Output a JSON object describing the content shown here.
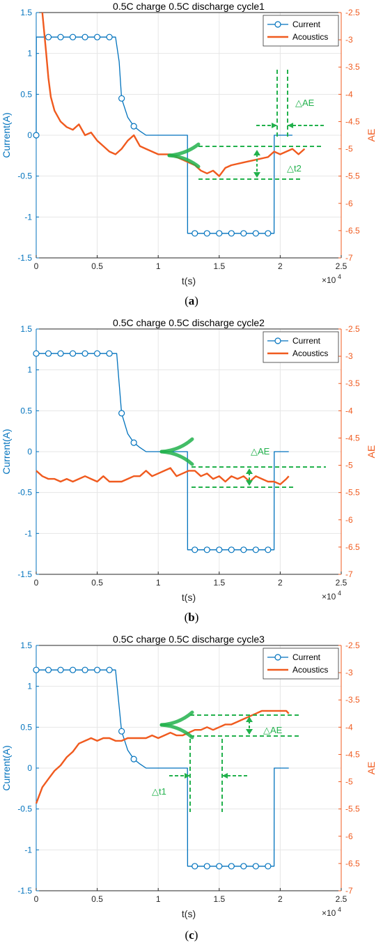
{
  "colors": {
    "current": "#0072BD",
    "acoustics": "#F05A1E",
    "annotation": "#22B14C",
    "grid": "#E6E6E6",
    "axis": "#262626"
  },
  "axes_common": {
    "xlabel": "t(s)",
    "ylabel_left": "Current(A)",
    "ylabel_right": "AE",
    "x_exponent_label": "×10",
    "x_exponent_power": "4",
    "xlim": [
      0,
      2.5
    ],
    "ylim_left": [
      -1.5,
      1.5
    ],
    "ylim_right": [
      -7,
      -2.5
    ],
    "xticks": [
      "0",
      "0.5",
      "1",
      "1.5",
      "2",
      "2.5"
    ],
    "yticks_left": [
      "-1.5",
      "-1",
      "-0.5",
      "0",
      "0.5",
      "1",
      "1.5"
    ],
    "yticks_right": [
      "-7",
      "-6.5",
      "-6",
      "-5.5",
      "-5",
      "-4.5",
      "-4",
      "-3.5",
      "-3",
      "-2.5"
    ],
    "legend": [
      "Current",
      "Acoustics"
    ],
    "legend_position": "top-right",
    "grid": true
  },
  "chart_data": [
    {
      "type": "line",
      "title": "0.5C charge 0.5C discharge cycle1",
      "caption_letter": "a",
      "series": [
        {
          "name": "Current",
          "axis": "left",
          "marker": "circle",
          "x": [
            0,
            0.001,
            0.1,
            0.2,
            0.3,
            0.4,
            0.5,
            0.6,
            0.65,
            0.68,
            0.7,
            0.75,
            0.8,
            0.85,
            0.9,
            1.0,
            1.1,
            1.24,
            1.241,
            1.3,
            1.4,
            1.5,
            1.6,
            1.7,
            1.8,
            1.95,
            1.951,
            2.1
          ],
          "y": [
            0,
            1.2,
            1.2,
            1.2,
            1.2,
            1.2,
            1.2,
            1.2,
            1.2,
            0.9,
            0.45,
            0.22,
            0.11,
            0.05,
            0.0,
            0.0,
            0.0,
            0.0,
            -1.2,
            -1.2,
            -1.2,
            -1.2,
            -1.2,
            -1.2,
            -1.2,
            -1.2,
            0.0,
            0.0
          ],
          "marker_x": [
            0,
            0.1,
            0.2,
            0.3,
            0.4,
            0.5,
            0.6,
            0.7,
            0.8,
            1.3,
            1.4,
            1.5,
            1.6,
            1.7,
            1.8,
            1.9
          ],
          "marker_y": [
            0,
            1.2,
            1.2,
            1.2,
            1.2,
            1.2,
            1.2,
            0.45,
            0.11,
            -1.2,
            -1.2,
            -1.2,
            -1.2,
            -1.2,
            -1.2,
            -1.2
          ]
        },
        {
          "name": "Acoustics",
          "axis": "right",
          "x": [
            0.05,
            0.08,
            0.1,
            0.12,
            0.15,
            0.2,
            0.25,
            0.3,
            0.35,
            0.4,
            0.45,
            0.5,
            0.55,
            0.6,
            0.65,
            0.7,
            0.75,
            0.8,
            0.85,
            0.9,
            1.0,
            1.1,
            1.2,
            1.3,
            1.35,
            1.4,
            1.45,
            1.5,
            1.55,
            1.6,
            1.7,
            1.8,
            1.9,
            1.95,
            2.0,
            2.1,
            2.15,
            2.2
          ],
          "y": [
            -2.5,
            -3.2,
            -3.7,
            -4.05,
            -4.3,
            -4.5,
            -4.6,
            -4.65,
            -4.55,
            -4.75,
            -4.7,
            -4.85,
            -4.95,
            -5.05,
            -5.1,
            -5.0,
            -4.85,
            -4.75,
            -4.95,
            -5.0,
            -5.1,
            -5.1,
            -5.2,
            -5.3,
            -5.4,
            -5.45,
            -5.4,
            -5.5,
            -5.35,
            -5.3,
            -5.25,
            -5.2,
            -5.15,
            -5.05,
            -5.1,
            -5.0,
            -5.1,
            -5.0
          ]
        }
      ],
      "annotations": [
        "△t2",
        "△AE"
      ]
    },
    {
      "type": "line",
      "title": "0.5C charge 0.5C discharge cycle2",
      "caption_letter": "b",
      "series": [
        {
          "name": "Current",
          "axis": "left",
          "marker": "circle",
          "x": [
            0,
            0.1,
            0.2,
            0.3,
            0.4,
            0.5,
            0.6,
            0.66,
            0.7,
            0.75,
            0.8,
            0.85,
            0.9,
            1.0,
            1.1,
            1.24,
            1.241,
            1.3,
            1.4,
            1.5,
            1.6,
            1.7,
            1.8,
            1.95,
            1.951,
            2.07
          ],
          "y": [
            1.2,
            1.2,
            1.2,
            1.2,
            1.2,
            1.2,
            1.2,
            1.2,
            0.47,
            0.22,
            0.11,
            0.05,
            0.0,
            0.0,
            0.0,
            0.0,
            -1.2,
            -1.2,
            -1.2,
            -1.2,
            -1.2,
            -1.2,
            -1.2,
            -1.2,
            0.0,
            0.0
          ],
          "marker_x": [
            0,
            0.1,
            0.2,
            0.3,
            0.4,
            0.5,
            0.6,
            0.7,
            0.8,
            1.3,
            1.4,
            1.5,
            1.6,
            1.7,
            1.8,
            1.9
          ],
          "marker_y": [
            1.2,
            1.2,
            1.2,
            1.2,
            1.2,
            1.2,
            1.2,
            0.47,
            0.11,
            -1.2,
            -1.2,
            -1.2,
            -1.2,
            -1.2,
            -1.2,
            -1.2
          ]
        },
        {
          "name": "Acoustics",
          "axis": "right",
          "x": [
            0,
            0.05,
            0.1,
            0.15,
            0.2,
            0.25,
            0.3,
            0.35,
            0.4,
            0.45,
            0.5,
            0.55,
            0.6,
            0.65,
            0.7,
            0.75,
            0.8,
            0.85,
            0.9,
            0.95,
            1.0,
            1.05,
            1.1,
            1.15,
            1.2,
            1.25,
            1.3,
            1.35,
            1.4,
            1.45,
            1.5,
            1.55,
            1.6,
            1.65,
            1.7,
            1.75,
            1.8,
            1.85,
            1.9,
            1.95,
            2.0,
            2.05,
            2.07
          ],
          "y": [
            -5.1,
            -5.2,
            -5.25,
            -5.25,
            -5.3,
            -5.25,
            -5.3,
            -5.25,
            -5.2,
            -5.25,
            -5.3,
            -5.2,
            -5.3,
            -5.3,
            -5.3,
            -5.25,
            -5.2,
            -5.2,
            -5.1,
            -5.2,
            -5.15,
            -5.1,
            -5.05,
            -5.2,
            -5.15,
            -5.1,
            -5.1,
            -5.2,
            -5.15,
            -5.25,
            -5.2,
            -5.3,
            -5.2,
            -5.25,
            -5.2,
            -5.3,
            -5.2,
            -5.25,
            -5.3,
            -5.3,
            -5.35,
            -5.25,
            -5.2
          ]
        }
      ],
      "annotations": [
        "△AE"
      ]
    },
    {
      "type": "line",
      "title": "0.5C charge 0.5C discharge cycle3",
      "caption_letter": "c",
      "series": [
        {
          "name": "Current",
          "axis": "left",
          "marker": "circle",
          "x": [
            0,
            0.1,
            0.2,
            0.3,
            0.4,
            0.5,
            0.6,
            0.65,
            0.7,
            0.75,
            0.8,
            0.85,
            0.9,
            1.0,
            1.1,
            1.24,
            1.241,
            1.3,
            1.4,
            1.5,
            1.6,
            1.7,
            1.8,
            1.95,
            1.951,
            2.07
          ],
          "y": [
            1.2,
            1.2,
            1.2,
            1.2,
            1.2,
            1.2,
            1.2,
            1.2,
            0.45,
            0.22,
            0.11,
            0.05,
            0.0,
            0.0,
            0.0,
            0.0,
            -1.2,
            -1.2,
            -1.2,
            -1.2,
            -1.2,
            -1.2,
            -1.2,
            -1.2,
            0.0,
            0.0
          ],
          "marker_x": [
            0,
            0.1,
            0.2,
            0.3,
            0.4,
            0.5,
            0.6,
            0.7,
            0.8,
            1.3,
            1.4,
            1.5,
            1.6,
            1.7,
            1.8,
            1.9
          ],
          "marker_y": [
            1.2,
            1.2,
            1.2,
            1.2,
            1.2,
            1.2,
            1.2,
            0.45,
            0.11,
            -1.2,
            -1.2,
            -1.2,
            -1.2,
            -1.2,
            -1.2,
            -1.2
          ]
        },
        {
          "name": "Acoustics",
          "axis": "right",
          "x": [
            0,
            0.05,
            0.1,
            0.15,
            0.2,
            0.25,
            0.3,
            0.35,
            0.4,
            0.45,
            0.5,
            0.55,
            0.6,
            0.65,
            0.7,
            0.75,
            0.8,
            0.85,
            0.9,
            0.95,
            1.0,
            1.05,
            1.1,
            1.15,
            1.2,
            1.25,
            1.3,
            1.35,
            1.4,
            1.45,
            1.5,
            1.55,
            1.6,
            1.65,
            1.7,
            1.75,
            1.8,
            1.85,
            1.9,
            1.95,
            2.0,
            2.05,
            2.07
          ],
          "y": [
            -5.4,
            -5.1,
            -4.95,
            -4.8,
            -4.7,
            -4.55,
            -4.45,
            -4.3,
            -4.25,
            -4.2,
            -4.25,
            -4.2,
            -4.2,
            -4.25,
            -4.25,
            -4.2,
            -4.2,
            -4.2,
            -4.2,
            -4.15,
            -4.2,
            -4.15,
            -4.1,
            -4.15,
            -4.15,
            -4.1,
            -4.05,
            -4.05,
            -4.0,
            -4.05,
            -4.0,
            -3.95,
            -3.95,
            -3.9,
            -3.85,
            -3.8,
            -3.75,
            -3.7,
            -3.7,
            -3.7,
            -3.7,
            -3.7,
            -3.75
          ]
        }
      ],
      "annotations": [
        "△t1",
        "△AE"
      ]
    }
  ]
}
